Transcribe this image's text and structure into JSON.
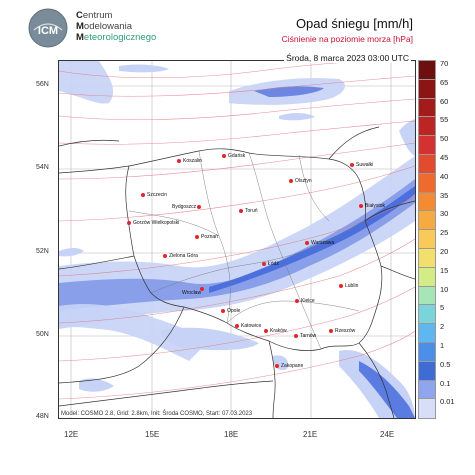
{
  "organization": {
    "logo_text": "ICM",
    "line1_cap": "C",
    "line1_rest": "entrum",
    "line2_cap": "M",
    "line2_rest": "odelowania",
    "line3_cap": "M",
    "line3_rest": "eteorologicznego"
  },
  "title": "Opad śniegu [mm/h]",
  "subtitle": "Ciśnienie na poziomie morza [hPa]",
  "datetime": "Środa, 8 marca 2023 03:00 UTC",
  "footer": "Model: COSMO 2.8, Grid: 2.8km, Init: Środa COSMO, Start: 07.03.2023",
  "axes": {
    "lat_labels": [
      "56N",
      "54N",
      "52N",
      "50N",
      "48N"
    ],
    "lon_labels": [
      "12E",
      "15E",
      "18E",
      "21E",
      "24E"
    ]
  },
  "legend": {
    "values": [
      "70",
      "65",
      "60",
      "55",
      "50",
      "45",
      "40",
      "35",
      "30",
      "25",
      "20",
      "15",
      "10",
      "5",
      "2",
      "1",
      "0.5",
      "0.1",
      "0.01"
    ],
    "colors": [
      "#6d0f0f",
      "#8b1414",
      "#a41b1b",
      "#bd2424",
      "#d43131",
      "#e34b2f",
      "#ef6a2d",
      "#f48a32",
      "#f7aa40",
      "#f9c95a",
      "#f3e06c",
      "#d4ec85",
      "#a6e5b5",
      "#7bd4d9",
      "#5fb7ef",
      "#4b8fe9",
      "#3f6bd4",
      "#8fa6ee",
      "#d8def7"
    ]
  },
  "cities": [
    {
      "name": "Koszalin"
    },
    {
      "name": "Gdańsk"
    },
    {
      "name": "Olsztyn"
    },
    {
      "name": "Suwałki"
    },
    {
      "name": "Szczecin"
    },
    {
      "name": "Bydgoszcz"
    },
    {
      "name": "Toruń"
    },
    {
      "name": "Gorzów Wielkopolski"
    },
    {
      "name": "Poznań"
    },
    {
      "name": "Białystok"
    },
    {
      "name": "Warszawa"
    },
    {
      "name": "Zielona Góra"
    },
    {
      "name": "Łódź"
    },
    {
      "name": "Wrocław"
    },
    {
      "name": "Lublin"
    },
    {
      "name": "Kielce"
    },
    {
      "name": "Opole"
    },
    {
      "name": "Katowice"
    },
    {
      "name": "Kraków"
    },
    {
      "name": "Rzeszów"
    },
    {
      "name": "Tarnów"
    },
    {
      "name": "Zakopane"
    }
  ]
}
